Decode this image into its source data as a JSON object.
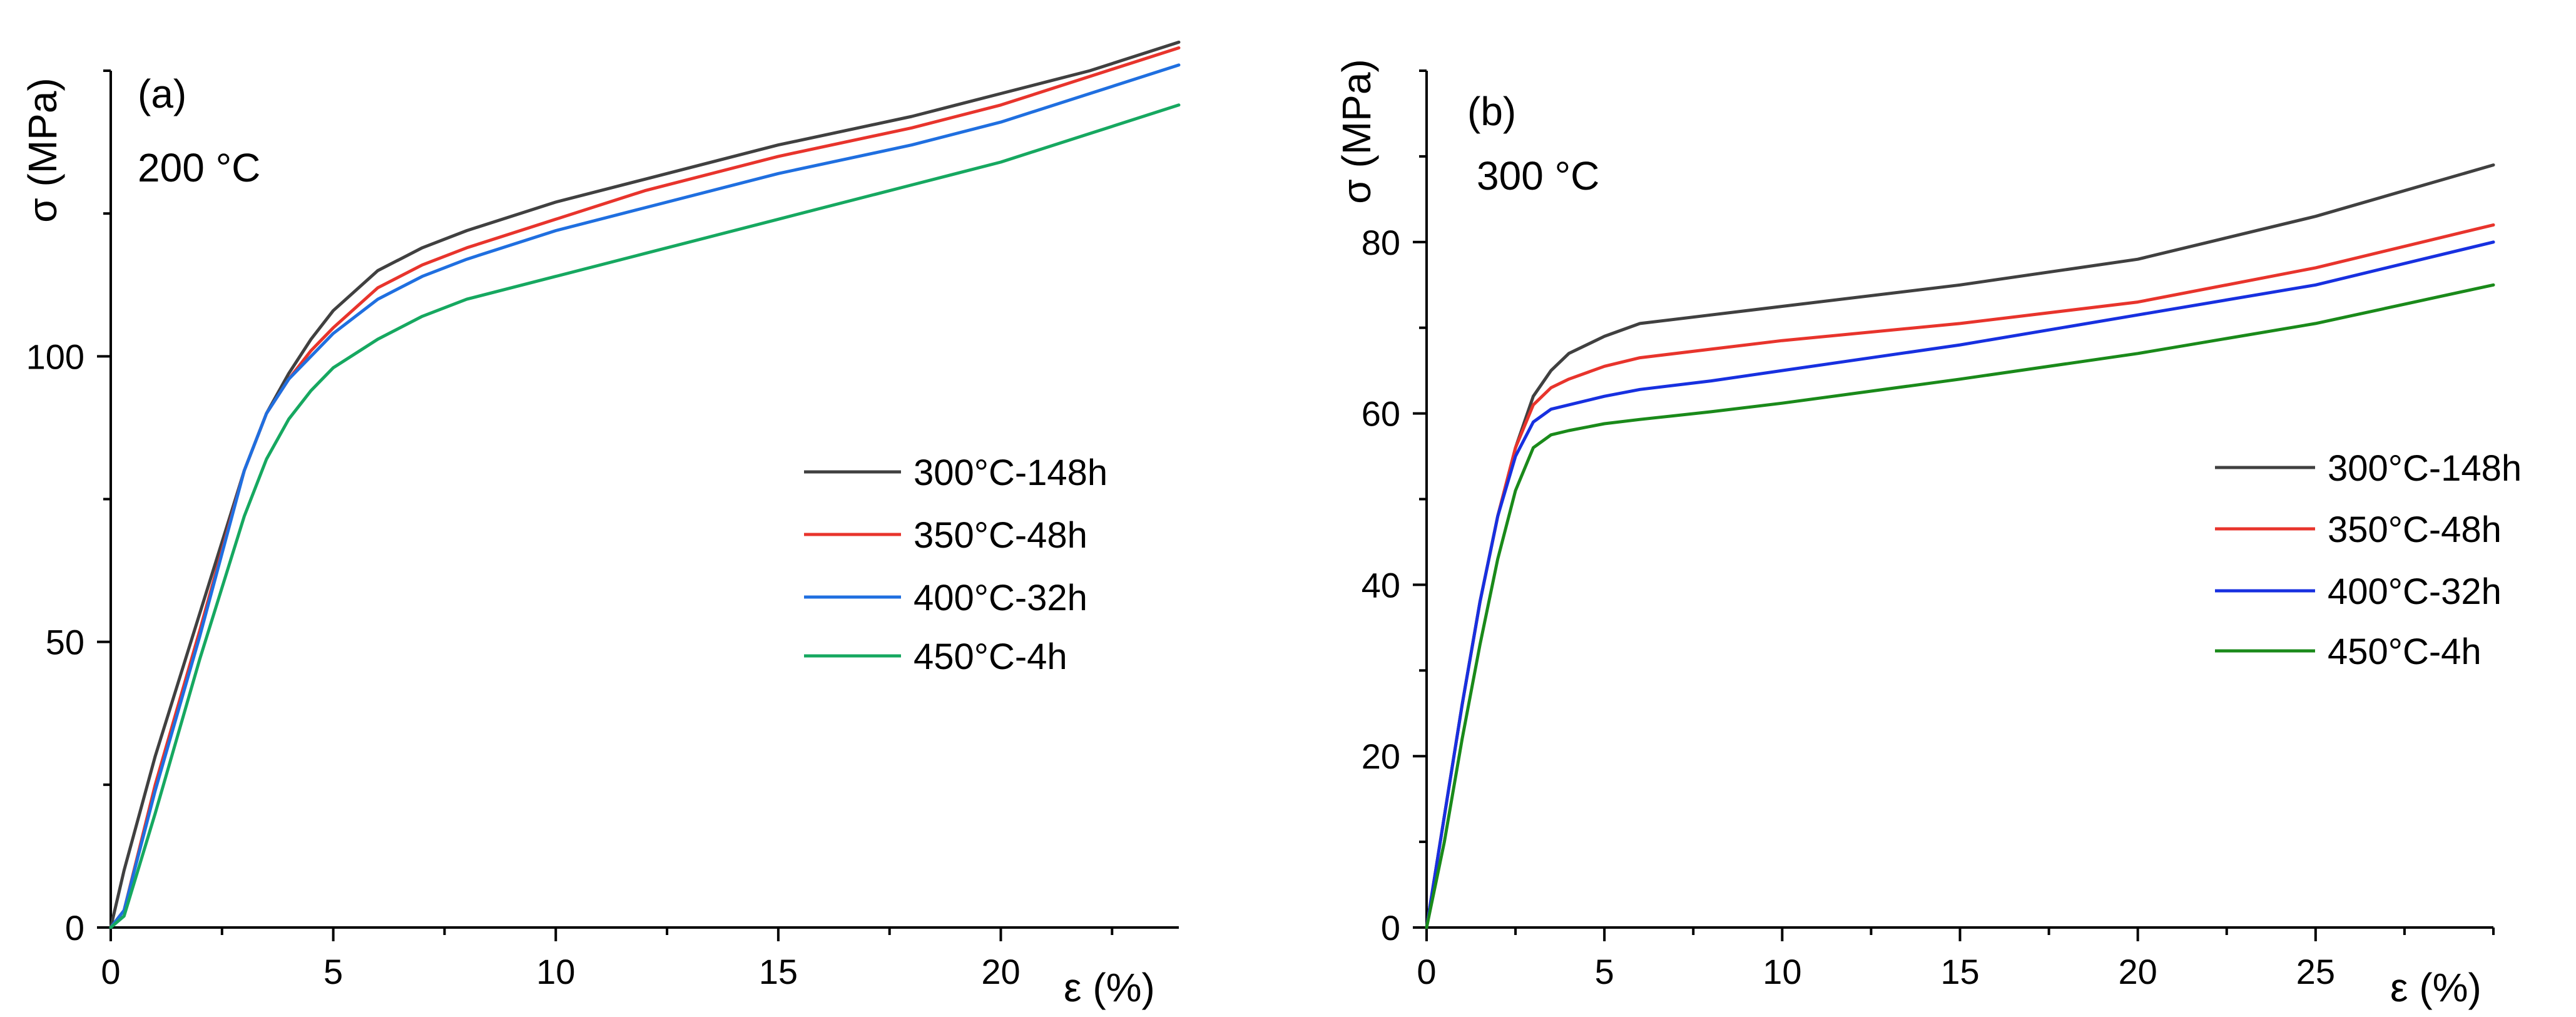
{
  "chart_data": [
    {
      "type": "line",
      "panel_label": "(a)",
      "temperature_label": "200 °C",
      "xlabel": "ε (%)",
      "ylabel": "σ (MPa)",
      "xlim": [
        0,
        24
      ],
      "ylim": [
        0,
        150
      ],
      "xticks": [
        0,
        5,
        10,
        15,
        20
      ],
      "yticks": [
        0,
        50,
        100
      ],
      "legend_position": "center-right",
      "series": [
        {
          "name": "300°C-148h",
          "color": "#404040",
          "x": [
            0,
            0.3,
            1,
            2,
            3,
            3.5,
            4,
            4.5,
            5,
            6,
            7,
            8,
            10,
            12,
            15,
            18,
            20,
            22,
            24
          ],
          "y": [
            0,
            10,
            30,
            55,
            80,
            90,
            97,
            103,
            108,
            115,
            119,
            122,
            127,
            131,
            137,
            142,
            146,
            150,
            155
          ]
        },
        {
          "name": "350°C-48h",
          "color": "#e8342c",
          "x": [
            0,
            0.3,
            1,
            2,
            3,
            3.5,
            4,
            4.5,
            5,
            6,
            7,
            8,
            10,
            12,
            15,
            18,
            20,
            22,
            24
          ],
          "y": [
            0,
            3,
            25,
            52,
            80,
            90,
            96,
            101,
            105,
            112,
            116,
            119,
            124,
            129,
            135,
            140,
            144,
            149,
            154
          ]
        },
        {
          "name": "400°C-32h",
          "color": "#1f6fe0",
          "x": [
            0,
            0.3,
            1,
            2,
            3,
            3.5,
            4,
            4.5,
            5,
            6,
            7,
            8,
            10,
            12,
            15,
            18,
            20,
            22,
            24
          ],
          "y": [
            0,
            3,
            24,
            51,
            80,
            90,
            96,
            100,
            104,
            110,
            114,
            117,
            122,
            126,
            132,
            137,
            141,
            146,
            151
          ]
        },
        {
          "name": "450°C-4h",
          "color": "#16a860",
          "x": [
            0,
            0.3,
            1,
            2,
            3,
            3.5,
            4,
            4.5,
            5,
            6,
            7,
            8,
            10,
            12,
            15,
            18,
            20,
            22,
            24
          ],
          "y": [
            0,
            2,
            20,
            47,
            72,
            82,
            89,
            94,
            98,
            103,
            107,
            110,
            114,
            118,
            124,
            130,
            134,
            139,
            144
          ]
        }
      ],
      "legend": [
        "300°C-148h",
        "350°C-48h",
        "400°C-32h",
        "450°C-4h"
      ]
    },
    {
      "type": "line",
      "panel_label": "(b)",
      "temperature_label": "300 °C",
      "xlabel": "ε (%)",
      "ylabel": "σ (MPa)",
      "xlim": [
        0,
        30
      ],
      "ylim": [
        0,
        100
      ],
      "xticks": [
        0,
        5,
        10,
        15,
        20,
        25
      ],
      "yticks": [
        0,
        20,
        40,
        60,
        80
      ],
      "legend_position": "center-right",
      "series": [
        {
          "name": "300°C-148h",
          "color": "#404040",
          "x": [
            0,
            0.5,
            1,
            1.5,
            2,
            2.5,
            3,
            3.5,
            4,
            5,
            6,
            8,
            10,
            15,
            20,
            25,
            30
          ],
          "y": [
            0,
            13,
            26,
            38,
            48,
            56,
            62,
            65,
            67,
            69,
            70.5,
            71.5,
            72.5,
            75,
            78,
            83,
            89
          ]
        },
        {
          "name": "350°C-48h",
          "color": "#e8342c",
          "x": [
            0,
            0.5,
            1,
            1.5,
            2,
            2.5,
            3,
            3.5,
            4,
            5,
            6,
            8,
            10,
            15,
            20,
            25,
            30
          ],
          "y": [
            0,
            13,
            26,
            38,
            48,
            56,
            61,
            63,
            64,
            65.5,
            66.5,
            67.5,
            68.5,
            70.5,
            73,
            77,
            82
          ]
        },
        {
          "name": "400°C-32h",
          "color": "#1730e0",
          "x": [
            0,
            0.5,
            1,
            1.5,
            2,
            2.5,
            3,
            3.5,
            4,
            5,
            6,
            8,
            10,
            15,
            20,
            25,
            30
          ],
          "y": [
            0,
            13,
            26,
            38,
            48,
            55,
            59,
            60.5,
            61,
            62,
            62.8,
            63.8,
            65,
            68,
            71.5,
            75,
            80
          ]
        },
        {
          "name": "450°C-4h",
          "color": "#1a8a1a",
          "x": [
            0,
            0.5,
            1,
            1.5,
            2,
            2.5,
            3,
            3.5,
            4,
            5,
            6,
            8,
            10,
            15,
            20,
            25,
            30
          ],
          "y": [
            0,
            10,
            22,
            33,
            43,
            51,
            56,
            57.5,
            58,
            58.8,
            59.3,
            60.2,
            61.2,
            64,
            67,
            70.5,
            75
          ]
        }
      ],
      "legend": [
        "300°C-148h",
        "350°C-48h",
        "400°C-32h",
        "450°C-4h"
      ]
    }
  ]
}
